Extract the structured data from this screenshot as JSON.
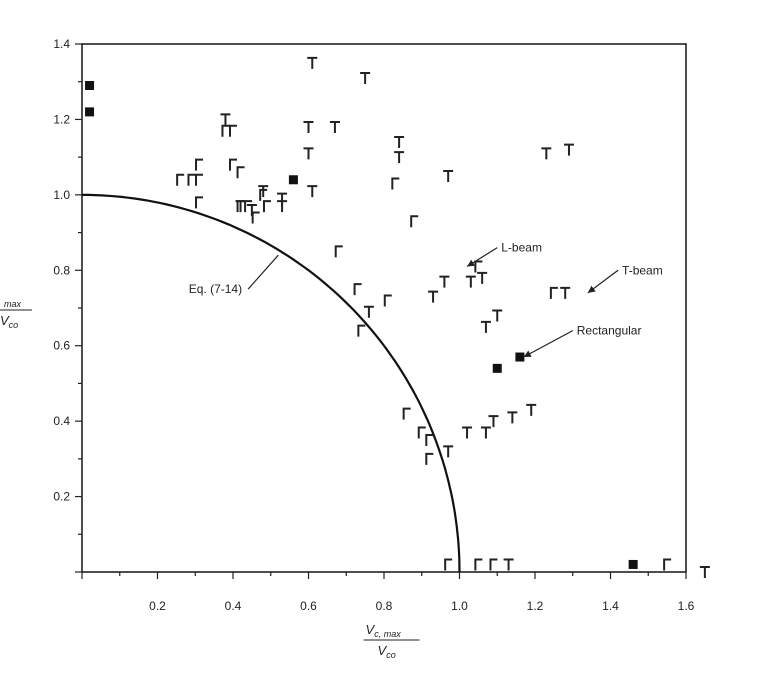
{
  "chart_data": {
    "type": "scatter",
    "xlim": [
      0,
      1.6
    ],
    "ylim": [
      0,
      1.4
    ],
    "x_ticks": [
      "0.2",
      "0.4",
      "0.6",
      "0.8",
      "1.0",
      "1.2",
      "1.4",
      "1.6"
    ],
    "y_ticks": [
      "0.2",
      "0.4",
      "0.6",
      "0.8",
      "1.0",
      "1.2",
      "1.4"
    ],
    "xlabel": {
      "main": "V",
      "sub": "c, max",
      "denom": "V",
      "denom_sub": "co"
    },
    "ylabel": {
      "main": "",
      "sub": "max",
      "denom": "V",
      "denom_sub": "co"
    },
    "grid": false,
    "curve": {
      "name": "Eq. (7-14)",
      "equation": "x^2 + y^2 = 1"
    },
    "annotations": [
      {
        "text": "Eq. (7-14)",
        "from": [
          0.44,
          0.75
        ],
        "to": [
          0.52,
          0.84
        ]
      },
      {
        "text": "L-beam",
        "from": [
          1.1,
          0.86
        ],
        "to": [
          1.02,
          0.81
        ]
      },
      {
        "text": "T-beam",
        "from": [
          1.42,
          0.8
        ],
        "to": [
          1.34,
          0.74
        ]
      },
      {
        "text": "Rectangular",
        "from": [
          1.3,
          0.64
        ],
        "to": [
          1.17,
          0.57
        ]
      }
    ],
    "series": [
      {
        "name": "T-beam",
        "marker": "T",
        "points": [
          [
            0.61,
            1.35
          ],
          [
            0.75,
            1.31
          ],
          [
            0.38,
            1.2
          ],
          [
            0.6,
            1.18
          ],
          [
            0.67,
            1.18
          ],
          [
            0.84,
            1.14
          ],
          [
            0.6,
            1.11
          ],
          [
            0.84,
            1.1
          ],
          [
            1.23,
            1.11
          ],
          [
            1.29,
            1.12
          ],
          [
            0.97,
            1.05
          ],
          [
            0.48,
            1.01
          ],
          [
            0.61,
            1.01
          ],
          [
            0.53,
            0.99
          ],
          [
            0.42,
            0.97
          ],
          [
            0.45,
            0.96
          ],
          [
            0.53,
            0.97
          ],
          [
            0.96,
            0.77
          ],
          [
            1.03,
            0.77
          ],
          [
            0.93,
            0.73
          ],
          [
            1.06,
            0.78
          ],
          [
            1.1,
            0.68
          ],
          [
            1.07,
            0.65
          ],
          [
            1.28,
            0.74
          ],
          [
            0.76,
            0.69
          ],
          [
            1.02,
            0.37
          ],
          [
            1.07,
            0.37
          ],
          [
            1.09,
            0.4
          ],
          [
            1.14,
            0.41
          ],
          [
            1.19,
            0.43
          ],
          [
            0.97,
            0.32
          ],
          [
            1.13,
            0.02
          ],
          [
            1.65,
            0.0
          ]
        ]
      },
      {
        "name": "L-beam",
        "marker": "L",
        "points": [
          [
            0.38,
            1.17
          ],
          [
            0.4,
            1.17
          ],
          [
            0.31,
            1.08
          ],
          [
            0.4,
            1.08
          ],
          [
            0.42,
            1.06
          ],
          [
            0.26,
            1.04
          ],
          [
            0.29,
            1.04
          ],
          [
            0.31,
            1.04
          ],
          [
            0.31,
            0.98
          ],
          [
            0.48,
            1.0
          ],
          [
            0.42,
            0.97
          ],
          [
            0.44,
            0.97
          ],
          [
            0.46,
            0.94
          ],
          [
            0.49,
            0.97
          ],
          [
            0.83,
            1.03
          ],
          [
            0.88,
            0.93
          ],
          [
            0.68,
            0.85
          ],
          [
            1.05,
            0.81
          ],
          [
            0.73,
            0.75
          ],
          [
            0.81,
            0.72
          ],
          [
            0.74,
            0.64
          ],
          [
            0.86,
            0.42
          ],
          [
            0.9,
            0.37
          ],
          [
            0.92,
            0.35
          ],
          [
            1.25,
            0.74
          ],
          [
            0.92,
            0.3
          ],
          [
            0.97,
            0.02
          ],
          [
            1.05,
            0.02
          ],
          [
            1.09,
            0.02
          ],
          [
            1.55,
            0.02
          ]
        ]
      },
      {
        "name": "Rectangular",
        "marker": "square",
        "points": [
          [
            0.02,
            1.29
          ],
          [
            0.02,
            1.22
          ],
          [
            0.56,
            1.04
          ],
          [
            1.1,
            0.54
          ],
          [
            1.16,
            0.57
          ],
          [
            1.46,
            0.02
          ]
        ]
      }
    ]
  }
}
